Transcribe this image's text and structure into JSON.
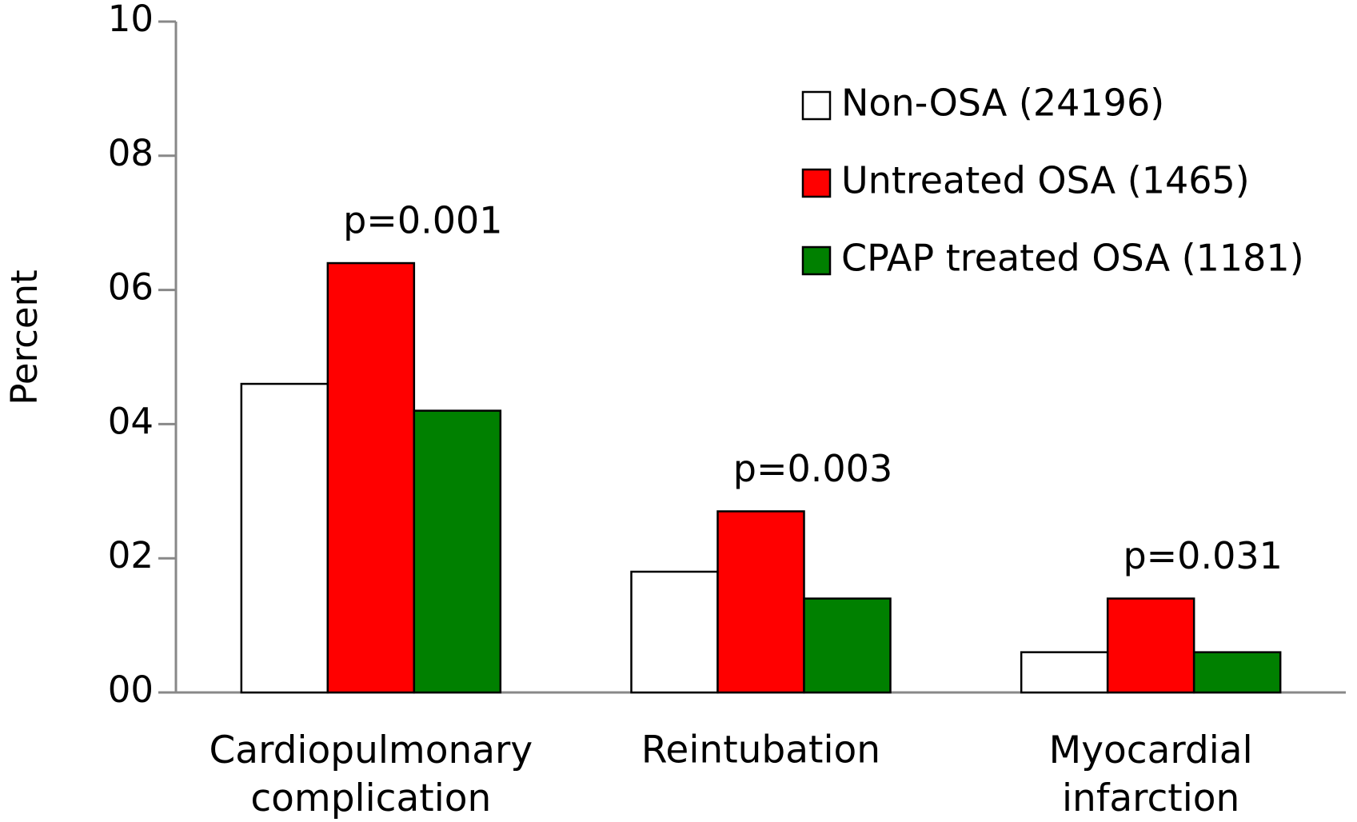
{
  "chart_data": {
    "type": "bar",
    "y_label": "Percent",
    "categories": [
      "Cardiopulmonary complication",
      "Reintubation",
      "Myocardial infarction"
    ],
    "series": [
      {
        "name": "Non-OSA (24196)",
        "color": "#ffffff",
        "values": [
          4.6,
          1.8,
          0.6
        ]
      },
      {
        "name": "Untreated OSA (1465)",
        "color": "#ff0000",
        "values": [
          6.4,
          2.7,
          1.4
        ]
      },
      {
        "name": "CPAP treated OSA (1181)",
        "color": "#008000",
        "values": [
          4.2,
          1.4,
          0.6
        ]
      }
    ],
    "p_values": [
      "p=0.001",
      "p=0.003",
      "p=0.031"
    ],
    "ylim": [
      0,
      10
    ],
    "yticks": [
      {
        "value": 0,
        "label": "00"
      },
      {
        "value": 2,
        "label": "02"
      },
      {
        "value": 4,
        "label": "04"
      },
      {
        "value": 6,
        "label": "06"
      },
      {
        "value": 8,
        "label": "08"
      },
      10
    ]
  }
}
